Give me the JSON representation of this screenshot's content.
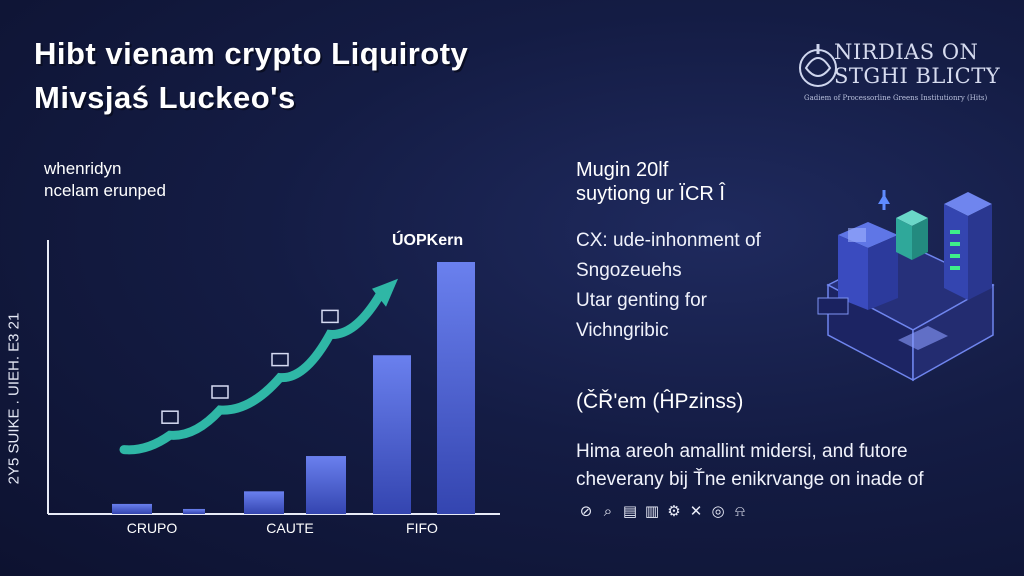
{
  "header": {
    "title_line1": "Hibt vienam crypto Liquiroty",
    "title_line2": "Mivsjaś Luckeo's"
  },
  "logo": {
    "line1": "NIRDIAS ON",
    "line2": "STGHI BLICTY",
    "subtitle": "Gadiem of Processorline Greens Institutionry (Hits)"
  },
  "chart_subtitle": {
    "line1": "whenridyn",
    "line2": "ncelam erunped"
  },
  "annotation": "ÚOPKern",
  "right_panel": {
    "heading_line1": "Mugin 20lf",
    "heading_line2": "suytiong ur ÏCR  Î",
    "body": [
      "CX: ude-inhonment of",
      "Sngozeuehs",
      "Utar genting for",
      "Vichngribic"
    ],
    "mid_heading": "(ČŘ'em (ĤPzinss)",
    "bottom_body": [
      "Hima areoh amallint midersi, and futore",
      "cheverany bij Ťne enikrvange on inade of"
    ],
    "icons": [
      "coin-icon",
      "chat-icon",
      "wallet-icon",
      "chart-icon",
      "gear-icon",
      "tools-icon",
      "target-icon",
      "bell-icon"
    ]
  },
  "colors": {
    "bar": "#4a5fd0",
    "bar_top": "#6a80ee",
    "arrow": "#2fb7a6",
    "accent": "#2f6fd8"
  },
  "chart_data": {
    "type": "bar",
    "title": "",
    "xlabel": "",
    "ylabel": "2Y5 SUIKE .  UIEH. E3 21",
    "categories": [
      "",
      "CRUPO",
      "",
      "CAUTE",
      "",
      "FIFO"
    ],
    "tick_labels": [
      "CRUPO",
      "CAUTE",
      "FIFO"
    ],
    "values": [
      4,
      2,
      9,
      23,
      63,
      100
    ],
    "ylim": [
      0,
      100
    ],
    "grid": false,
    "trend_line": {
      "series_name": "",
      "values": [
        8,
        16,
        30,
        48,
        72,
        94
      ]
    }
  }
}
